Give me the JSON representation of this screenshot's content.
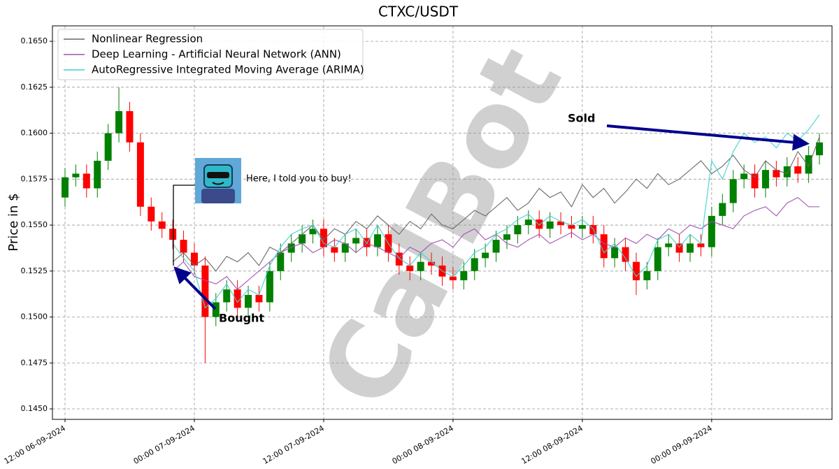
{
  "chart_data": {
    "type": "candlestick",
    "title": "CTXC/USDT",
    "y_label": "Price in $",
    "watermark": "CalBot",
    "annotations": {
      "bought": "Bought",
      "sold": "Sold",
      "callout": "Here, I told you to buy!"
    },
    "x": [
      "12:00 06-09-2024",
      "13:00 06-09-2024",
      "14:00 06-09-2024",
      "15:00 06-09-2024",
      "16:00 06-09-2024",
      "17:00 06-09-2024",
      "18:00 06-09-2024",
      "19:00 06-09-2024",
      "20:00 06-09-2024",
      "21:00 06-09-2024",
      "22:00 06-09-2024",
      "23:00 06-09-2024",
      "00:00 07-09-2024",
      "01:00 07-09-2024",
      "02:00 07-09-2024",
      "03:00 07-09-2024",
      "04:00 07-09-2024",
      "05:00 07-09-2024",
      "06:00 07-09-2024",
      "07:00 07-09-2024",
      "08:00 07-09-2024",
      "09:00 07-09-2024",
      "10:00 07-09-2024",
      "11:00 07-09-2024",
      "12:00 07-09-2024",
      "13:00 07-09-2024",
      "14:00 07-09-2024",
      "15:00 07-09-2024",
      "16:00 07-09-2024",
      "17:00 07-09-2024",
      "18:00 07-09-2024",
      "19:00 07-09-2024",
      "20:00 07-09-2024",
      "21:00 07-09-2024",
      "22:00 07-09-2024",
      "23:00 07-09-2024",
      "00:00 08-09-2024",
      "01:00 08-09-2024",
      "02:00 08-09-2024",
      "03:00 08-09-2024",
      "04:00 08-09-2024",
      "05:00 08-09-2024",
      "06:00 08-09-2024",
      "07:00 08-09-2024",
      "08:00 08-09-2024",
      "09:00 08-09-2024",
      "10:00 08-09-2024",
      "11:00 08-09-2024",
      "12:00 08-09-2024",
      "13:00 08-09-2024",
      "14:00 08-09-2024",
      "15:00 08-09-2024",
      "16:00 08-09-2024",
      "17:00 08-09-2024",
      "18:00 08-09-2024",
      "19:00 08-09-2024",
      "20:00 08-09-2024",
      "21:00 08-09-2024",
      "22:00 08-09-2024",
      "23:00 08-09-2024",
      "00:00 09-09-2024",
      "01:00 09-09-2024",
      "02:00 09-09-2024",
      "03:00 09-09-2024",
      "04:00 09-09-2024",
      "05:00 09-09-2024",
      "06:00 09-09-2024",
      "07:00 09-09-2024",
      "08:00 09-09-2024",
      "09:00 09-09-2024",
      "10:00 09-09-2024"
    ],
    "open": [
      0.1565,
      0.1576,
      0.1578,
      0.157,
      0.1585,
      0.16,
      0.1612,
      0.1595,
      0.156,
      0.1552,
      0.1548,
      0.1542,
      0.1535,
      0.1528,
      0.15,
      0.1508,
      0.1515,
      0.1505,
      0.1512,
      0.1508,
      0.1525,
      0.1535,
      0.154,
      0.1545,
      0.1548,
      0.1538,
      0.1535,
      0.154,
      0.1543,
      0.1538,
      0.1545,
      0.1535,
      0.1528,
      0.1525,
      0.153,
      0.1528,
      0.1522,
      0.152,
      0.1525,
      0.1532,
      0.1535,
      0.1542,
      0.1545,
      0.155,
      0.1553,
      0.1548,
      0.1552,
      0.155,
      0.1548,
      0.155,
      0.1545,
      0.1532,
      0.1538,
      0.153,
      0.152,
      0.1525,
      0.1538,
      0.154,
      0.1535,
      0.154,
      0.1538,
      0.1555,
      0.1562,
      0.1575,
      0.1578,
      0.157,
      0.158,
      0.1576,
      0.1582,
      0.1578,
      0.1588
    ],
    "high": [
      0.1581,
      0.1583,
      0.1583,
      0.159,
      0.1605,
      0.1625,
      0.1617,
      0.16,
      0.1565,
      0.1557,
      0.1553,
      0.1547,
      0.154,
      0.1533,
      0.1513,
      0.152,
      0.152,
      0.1517,
      0.1517,
      0.153,
      0.154,
      0.1545,
      0.155,
      0.1553,
      0.1553,
      0.1543,
      0.1545,
      0.1548,
      0.1548,
      0.155,
      0.155,
      0.154,
      0.1533,
      0.1535,
      0.1535,
      0.1533,
      0.1527,
      0.153,
      0.1537,
      0.154,
      0.1547,
      0.155,
      0.1555,
      0.1558,
      0.1558,
      0.1557,
      0.1557,
      0.1555,
      0.1555,
      0.1555,
      0.155,
      0.1543,
      0.1543,
      0.1535,
      0.153,
      0.1543,
      0.1545,
      0.1545,
      0.1545,
      0.1545,
      0.156,
      0.1567,
      0.158,
      0.1583,
      0.1583,
      0.1585,
      0.1585,
      0.1587,
      0.1587,
      0.1593,
      0.16
    ],
    "low": [
      0.156,
      0.1571,
      0.1565,
      0.1565,
      0.158,
      0.1595,
      0.159,
      0.1555,
      0.1547,
      0.1543,
      0.1537,
      0.153,
      0.1523,
      0.1475,
      0.1495,
      0.1503,
      0.15,
      0.15,
      0.1503,
      0.1503,
      0.152,
      0.153,
      0.1535,
      0.154,
      0.1533,
      0.153,
      0.153,
      0.1535,
      0.1533,
      0.1533,
      0.153,
      0.1523,
      0.152,
      0.152,
      0.1523,
      0.1517,
      0.1515,
      0.1515,
      0.152,
      0.1527,
      0.153,
      0.1537,
      0.154,
      0.1545,
      0.1543,
      0.1543,
      0.1545,
      0.1543,
      0.1543,
      0.154,
      0.1527,
      0.1527,
      0.1525,
      0.1512,
      0.1515,
      0.152,
      0.1533,
      0.153,
      0.153,
      0.1533,
      0.1533,
      0.155,
      0.1557,
      0.157,
      0.1565,
      0.1565,
      0.1571,
      0.1571,
      0.1573,
      0.1573,
      0.1583
    ],
    "close": [
      0.1576,
      0.1578,
      0.157,
      0.1585,
      0.16,
      0.1612,
      0.1595,
      0.156,
      0.1552,
      0.1548,
      0.1542,
      0.1535,
      0.1528,
      0.15,
      0.1508,
      0.1515,
      0.1505,
      0.1512,
      0.1508,
      0.1525,
      0.1535,
      0.154,
      0.1545,
      0.1548,
      0.1538,
      0.1535,
      0.154,
      0.1543,
      0.1538,
      0.1545,
      0.1535,
      0.1528,
      0.1525,
      0.153,
      0.1528,
      0.1522,
      0.152,
      0.1525,
      0.1532,
      0.1535,
      0.1542,
      0.1545,
      0.155,
      0.1553,
      0.1548,
      0.1552,
      0.155,
      0.1548,
      0.155,
      0.1545,
      0.1532,
      0.1538,
      0.153,
      0.152,
      0.1525,
      0.1538,
      0.154,
      0.1535,
      0.154,
      0.1538,
      0.1555,
      0.1562,
      0.1575,
      0.1578,
      0.157,
      0.158,
      0.1576,
      0.1582,
      0.1578,
      0.1588,
      0.1595
    ],
    "up_color": "#008000",
    "down_color": "#ff0000",
    "series": [
      {
        "name": "Nonlinear Regression",
        "color": "#666666",
        "values": [
          null,
          null,
          null,
          null,
          null,
          null,
          null,
          null,
          null,
          null,
          0.153,
          0.1535,
          0.1528,
          0.1532,
          0.1525,
          0.1533,
          0.153,
          0.1535,
          0.1528,
          0.1538,
          0.1535,
          0.154,
          0.1545,
          0.155,
          0.1542,
          0.1548,
          0.1545,
          0.1552,
          0.1548,
          0.1555,
          0.155,
          0.1545,
          0.1552,
          0.1548,
          0.1556,
          0.155,
          0.1548,
          0.1553,
          0.1558,
          0.1555,
          0.156,
          0.1565,
          0.1558,
          0.1562,
          0.157,
          0.1565,
          0.1568,
          0.156,
          0.1572,
          0.1565,
          0.157,
          0.1562,
          0.1568,
          0.1575,
          0.157,
          0.1578,
          0.1572,
          0.1575,
          0.158,
          0.1585,
          0.1578,
          0.1582,
          0.1588,
          0.158,
          0.1576,
          0.1585,
          0.158,
          0.1578,
          0.159,
          0.1582,
          0.1598
        ]
      },
      {
        "name": "Deep Learning - Artificial Neural Network (ANN)",
        "color": "#a050b0",
        "values": [
          null,
          null,
          null,
          null,
          null,
          null,
          null,
          null,
          null,
          null,
          0.1525,
          0.153,
          0.1522,
          0.152,
          0.1518,
          0.1522,
          0.1515,
          0.152,
          0.1525,
          0.153,
          0.1535,
          0.1538,
          0.154,
          0.1535,
          0.1538,
          0.1542,
          0.154,
          0.1535,
          0.154,
          0.1538,
          0.1535,
          0.1532,
          0.1538,
          0.1535,
          0.154,
          0.1542,
          0.1538,
          0.1545,
          0.1548,
          0.1542,
          0.1545,
          0.154,
          0.1538,
          0.1542,
          0.1545,
          0.154,
          0.1543,
          0.1546,
          0.1542,
          0.1545,
          0.154,
          0.1538,
          0.1543,
          0.154,
          0.1545,
          0.1542,
          0.1548,
          0.1545,
          0.155,
          0.1548,
          0.1552,
          0.155,
          0.1548,
          0.1555,
          0.1558,
          0.156,
          0.1555,
          0.1562,
          0.1565,
          0.156,
          0.156
        ]
      },
      {
        "name": "AutoRegressive Integrated Moving Average (ARIMA)",
        "color": "#40d0d0",
        "values": [
          null,
          null,
          null,
          null,
          null,
          null,
          null,
          null,
          null,
          null,
          0.154,
          0.1532,
          0.1525,
          0.1505,
          0.151,
          0.1518,
          0.1508,
          0.1515,
          0.1512,
          0.1528,
          0.1538,
          0.1545,
          0.1548,
          0.155,
          0.154,
          0.1538,
          0.1545,
          0.1548,
          0.154,
          0.155,
          0.154,
          0.1532,
          0.1528,
          0.1535,
          0.153,
          0.1525,
          0.1522,
          0.1528,
          0.1535,
          0.1538,
          0.1545,
          0.1548,
          0.1553,
          0.1556,
          0.155,
          0.1555,
          0.1552,
          0.155,
          0.1553,
          0.1548,
          0.1535,
          0.154,
          0.1532,
          0.1522,
          0.1528,
          0.1542,
          0.1545,
          0.1538,
          0.1545,
          0.154,
          0.1585,
          0.1575,
          0.159,
          0.16,
          0.1595,
          0.1598,
          0.1592,
          0.16,
          0.1596,
          0.1602,
          0.161
        ]
      }
    ],
    "xlim": [
      "10:50 06-09-2024",
      "11:10 09-09-2024"
    ],
    "xticks": [
      "12:00 06-09-2024",
      "00:00 07-09-2024",
      "12:00 07-09-2024",
      "00:00 08-09-2024",
      "12:00 08-09-2024",
      "00:00 09-09-2024"
    ],
    "ylim": [
      0.14443,
      0.16584
    ],
    "yticks": [
      {
        "value": 0.145,
        "label": "0.1450"
      },
      {
        "value": 0.1475,
        "label": "0.1475"
      },
      {
        "value": 0.15,
        "label": "0.1500"
      },
      {
        "value": 0.1525,
        "label": "0.1525"
      },
      {
        "value": 0.155,
        "label": "0.1550"
      },
      {
        "value": 0.1575,
        "label": "0.1575"
      },
      {
        "value": 0.16,
        "label": "0.1600"
      },
      {
        "value": 0.1625,
        "label": "0.1625"
      },
      {
        "value": 0.165,
        "label": "0.1650"
      }
    ],
    "grid": true,
    "legend": "upper left"
  }
}
